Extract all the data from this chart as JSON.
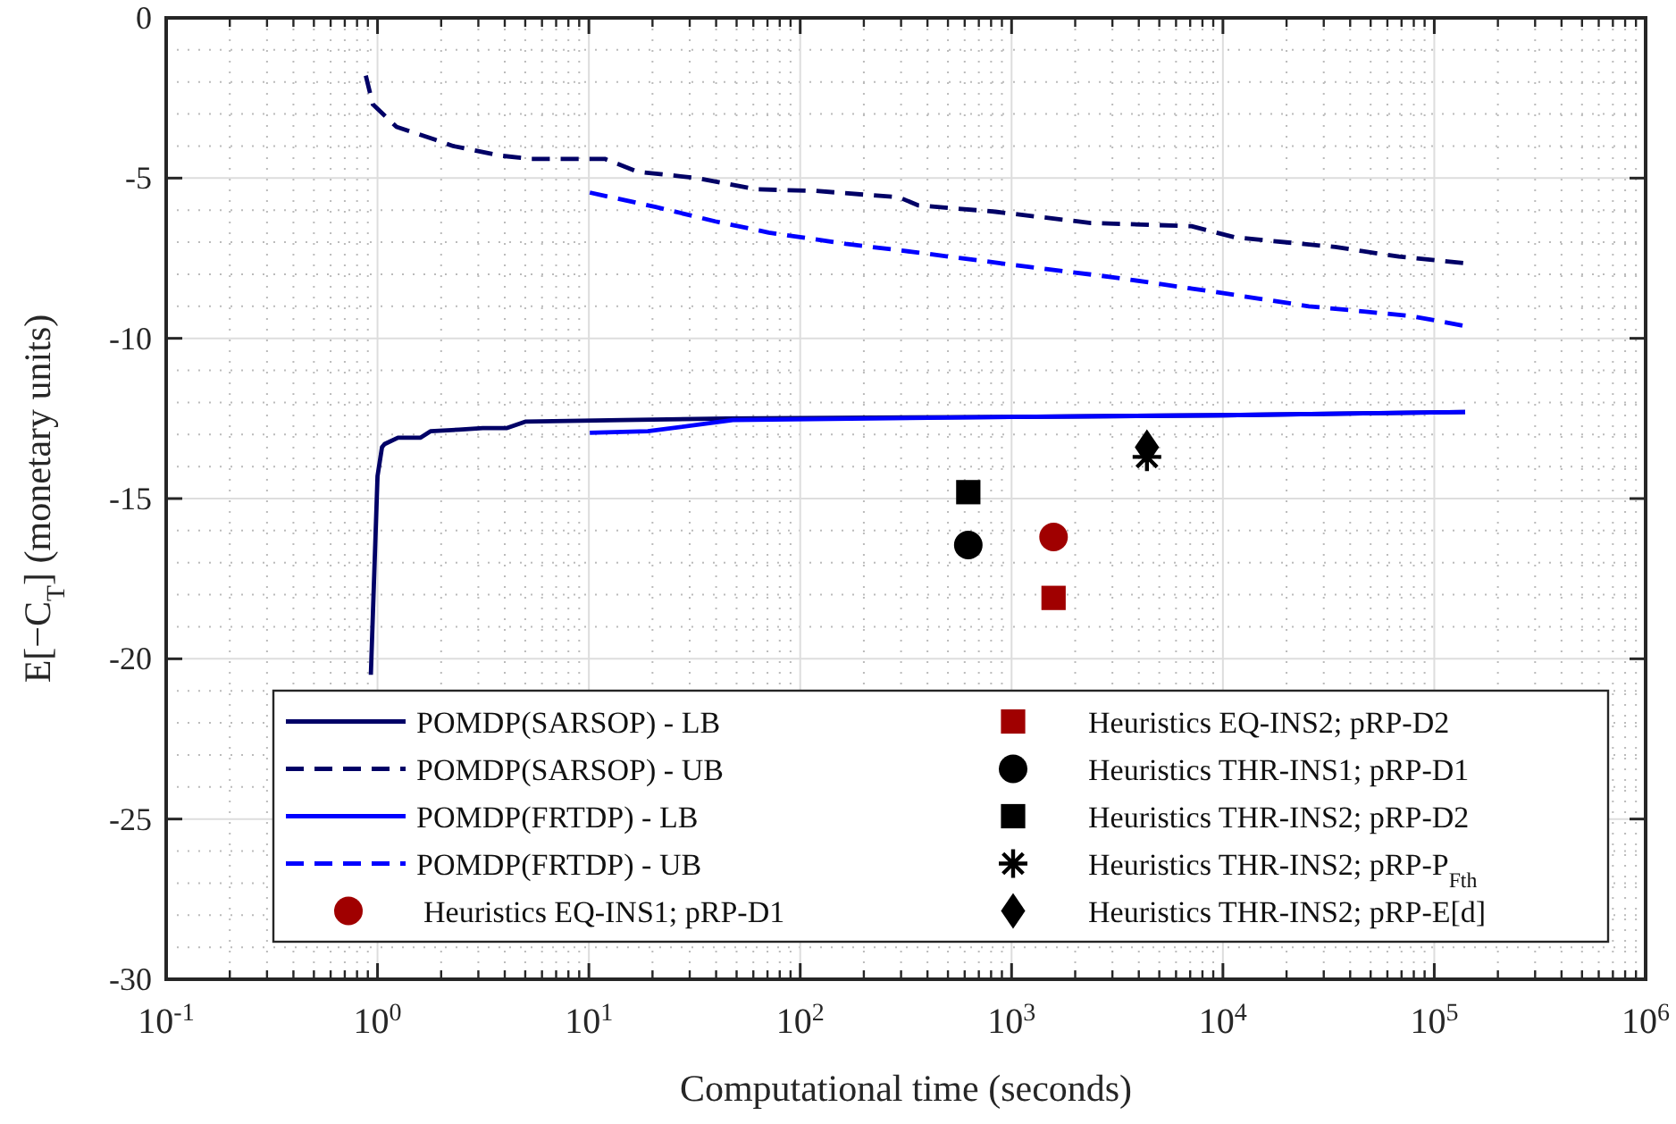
{
  "chart_data": {
    "type": "line",
    "xlabel": "Computational time (seconds)",
    "ylabel": "E[−C$_{T}$] (monetary units)",
    "log": "x",
    "xlim": [
      0.1,
      1000000
    ],
    "ylim": [
      -30,
      0
    ],
    "xticks": [
      {
        "value": 0.1,
        "label": "10$^{-1}$"
      },
      {
        "value": 1,
        "label": "10$^{0}$"
      },
      {
        "value": 10,
        "label": "10$^{1}$"
      },
      {
        "value": 100,
        "label": "10$^{2}$"
      },
      {
        "value": 1000,
        "label": "10$^{3}$"
      },
      {
        "value": 10000,
        "label": "10$^{4}$"
      },
      {
        "value": 100000,
        "label": "10$^{5}$"
      },
      {
        "value": 1000000,
        "label": "10$^{6}$"
      }
    ],
    "yticks": [
      0,
      -5,
      -10,
      -15,
      -20,
      -25,
      -30
    ],
    "grid": true,
    "legend": "bottom",
    "series": [
      {
        "name": "POMDP(SARSOP) - LB",
        "line_style": "solid",
        "color": "#000066",
        "x": [
          0.93,
          1.0,
          1.05,
          1.08,
          1.25,
          1.6,
          1.78,
          2.43,
          3.15,
          4.1,
          5.0,
          14.5,
          45,
          1000,
          10000,
          140000
        ],
        "values": [
          -20.5,
          -14.3,
          -13.4,
          -13.3,
          -13.1,
          -13.1,
          -12.9,
          -12.85,
          -12.8,
          -12.8,
          -12.6,
          -12.55,
          -12.5,
          -12.45,
          -12.4,
          -12.3
        ]
      },
      {
        "name": "POMDP(SARSOP) - UB",
        "line_style": "dashed",
        "color": "#000066",
        "x": [
          0.88,
          0.95,
          1.1,
          1.23,
          1.87,
          2.28,
          3.83,
          5.3,
          11.9,
          17,
          32.6,
          62,
          119,
          294,
          361,
          840,
          2370,
          7100,
          11400,
          34000,
          68000,
          137000
        ],
        "values": [
          -1.8,
          -2.7,
          -3.1,
          -3.4,
          -3.8,
          -4.0,
          -4.3,
          -4.4,
          -4.4,
          -4.8,
          -5.0,
          -5.35,
          -5.4,
          -5.6,
          -5.85,
          -6.05,
          -6.4,
          -6.5,
          -6.85,
          -7.15,
          -7.45,
          -7.65
        ]
      },
      {
        "name": "POMDP(FRTDP) - LB",
        "line_style": "solid",
        "color": "#0000ff",
        "x": [
          10.1,
          19,
          48,
          1000,
          10000,
          140000
        ],
        "values": [
          -12.95,
          -12.9,
          -12.55,
          -12.45,
          -12.4,
          -12.3
        ]
      },
      {
        "name": "POMDP(FRTDP) - UB",
        "line_style": "dashed",
        "color": "#0000ff",
        "x": [
          10.1,
          20.7,
          39.6,
          71,
          164,
          338,
          1000,
          3070,
          9140,
          25500,
          77000,
          136000
        ],
        "values": [
          -5.45,
          -5.9,
          -6.35,
          -6.7,
          -7.05,
          -7.3,
          -7.7,
          -8.1,
          -8.55,
          -9.0,
          -9.3,
          -9.6
        ]
      },
      {
        "name": "Heuristics EQ-INS1; pRP-D1",
        "type": "scatter",
        "marker": "circle",
        "color": "#a00000",
        "x": [
          1580
        ],
        "values": [
          -16.2
        ]
      },
      {
        "name": "Heuristics EQ-INS2; pRP-D2",
        "type": "scatter",
        "marker": "square",
        "color": "#a00000",
        "x": [
          1580
        ],
        "values": [
          -18.1
        ]
      },
      {
        "name": "Heuristics THR-INS1; pRP-D1",
        "type": "scatter",
        "marker": "circle",
        "color": "#000000",
        "x": [
          624
        ],
        "values": [
          -16.45
        ]
      },
      {
        "name": "Heuristics THR-INS2; pRP-D2",
        "type": "scatter",
        "marker": "square",
        "color": "#000000",
        "x": [
          624
        ],
        "values": [
          -14.8
        ]
      },
      {
        "name": "Heuristics THR-INS2; pRP-P$_{Fth}$",
        "type": "scatter",
        "marker": "cross",
        "color": "#000000",
        "x": [
          4370
        ],
        "values": [
          -13.7
        ]
      },
      {
        "name": "Heuristics THR-INS2; pRP-E[d]",
        "type": "scatter",
        "marker": "diamond",
        "color": "#000000",
        "x": [
          4370
        ],
        "values": [
          -13.4
        ]
      }
    ]
  }
}
